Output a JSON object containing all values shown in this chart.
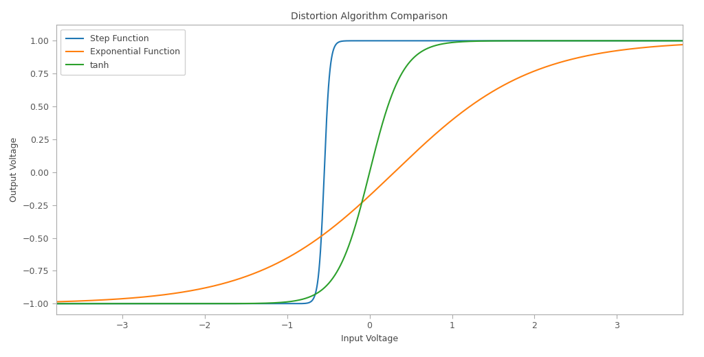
{
  "title": "Distortion Algorithm Comparison",
  "xlabel": "Input Voltage",
  "ylabel": "Output Voltage",
  "xlim": [
    -3.8,
    3.8
  ],
  "ylim": [
    -1.08,
    1.12
  ],
  "legend_labels": [
    "Step Function",
    "Exponential Function",
    "tanh"
  ],
  "colors": [
    "#1f77b4",
    "#ff7f0e",
    "#2ca02c"
  ],
  "line_width": 1.5,
  "step_k": 15.0,
  "step_shift": -0.55,
  "exp_k": 0.6,
  "exp_shift": 0.3,
  "tanh_k": 2.5,
  "tanh_shift": 0.0,
  "background_color": "#ffffff",
  "figsize": [
    10.24,
    5.2
  ],
  "dpi": 100
}
